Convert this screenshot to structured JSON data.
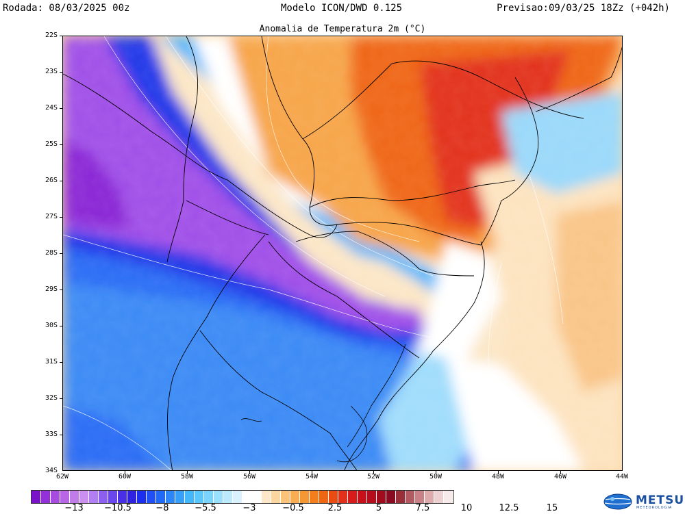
{
  "header": {
    "run": "Rodada: 08/03/2025 00z",
    "model": "Modelo ICON/DWD 0.125",
    "forecast": "Previsao:09/03/25 18Zz (+042h)"
  },
  "map": {
    "title": "Anomalia de Temperatura 2m (°C)",
    "lat_labels": [
      "22S",
      "23S",
      "24S",
      "25S",
      "26S",
      "27S",
      "28S",
      "29S",
      "30S",
      "31S",
      "32S",
      "33S",
      "34S"
    ],
    "lon_labels": [
      "62W",
      "60W",
      "58W",
      "56W",
      "54W",
      "52W",
      "50W",
      "48W",
      "46W",
      "44W"
    ]
  },
  "colorbar": {
    "colors": [
      "#7a12c9",
      "#9430d8",
      "#a84ce0",
      "#b865e6",
      "#c27ce8",
      "#cc8ff0",
      "#b27ef3",
      "#8c5ff0",
      "#6a46ee",
      "#4a2fe8",
      "#2f22e0",
      "#1a2ff0",
      "#1f4ff5",
      "#2369f8",
      "#2d86f8",
      "#389ff8",
      "#44b6fa",
      "#5ac6fb",
      "#7ad3fc",
      "#9ae0fd",
      "#bbeafd",
      "#d9f2fe",
      "#ffffff",
      "#ffffff",
      "#fde8c8",
      "#fcd59f",
      "#fbc27a",
      "#f8ad55",
      "#f59735",
      "#f27f1c",
      "#ee6512",
      "#ea4b12",
      "#e3301a",
      "#d81a1a",
      "#c7101a",
      "#b50d1c",
      "#a00b1e",
      "#8a0a22",
      "#9a2f3a",
      "#b25a62",
      "#c98188",
      "#ddaaae",
      "#ecd0d2",
      "#f7eaeb"
    ],
    "labels": [
      "−13",
      "−10.5",
      "−8",
      "−5.5",
      "−3",
      "−0.5",
      "2.5",
      "5",
      "7.5",
      "10",
      "12.5",
      "15"
    ]
  },
  "logo": {
    "name": "METSUL",
    "tagline": "METEOROLOGIA"
  }
}
